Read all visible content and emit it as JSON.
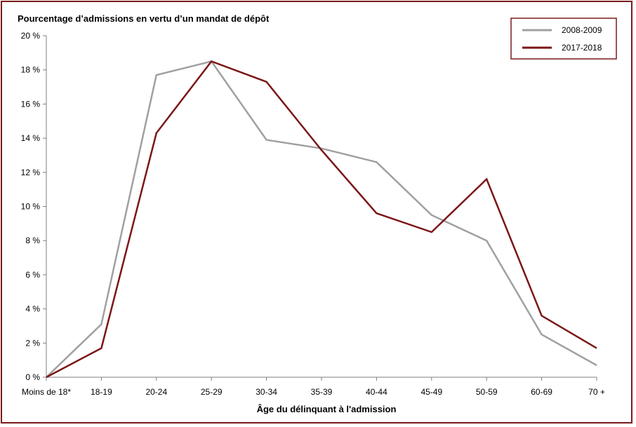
{
  "chart_data": {
    "type": "line",
    "title": "",
    "ylabel": "Pourcentage d’admissions en vertu d’un mandat de dépôt",
    "xlabel": "Âge du délinquant à l'admission",
    "categories": [
      "Moins de 18*",
      "18-19",
      "20-24",
      "25-29",
      "30-34",
      "35-39",
      "40-44",
      "45-49",
      "50-59",
      "60-69",
      "70 +"
    ],
    "ylim": [
      0,
      20
    ],
    "yticks": [
      "0 %",
      "2 %",
      "4 %",
      "6 %",
      "8 %",
      "10 %",
      "12 %",
      "14 %",
      "16 %",
      "18 %",
      "20 %"
    ],
    "grid": false,
    "legend_position": "top-right",
    "series": [
      {
        "name": "2008-2009",
        "color": "#a0a0a0",
        "values": [
          0,
          3.1,
          17.7,
          18.5,
          13.9,
          13.4,
          12.6,
          9.5,
          8.0,
          2.5,
          0.7
        ]
      },
      {
        "name": "2017-2018",
        "color": "#7b1616",
        "values": [
          0,
          1.7,
          14.3,
          18.5,
          17.3,
          13.3,
          9.6,
          8.5,
          11.6,
          3.6,
          1.7
        ]
      }
    ]
  }
}
